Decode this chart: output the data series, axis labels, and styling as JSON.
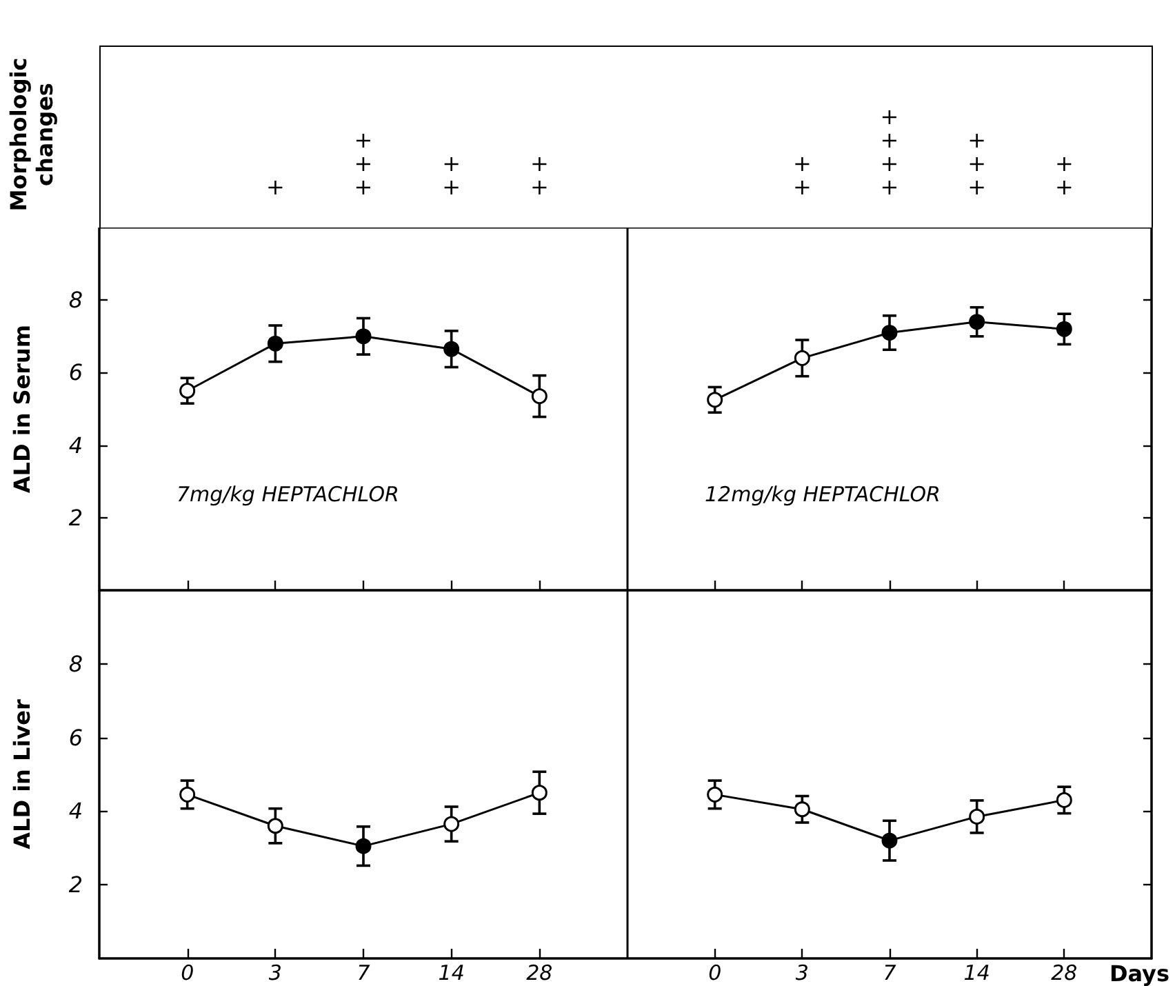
{
  "chart_data": [
    {
      "type": "other",
      "ylabel": "Morphologic changes",
      "categories": [
        "0",
        "3",
        "7",
        "14",
        "28"
      ],
      "value_labels": [
        null,
        "+",
        "+++",
        "++",
        "++"
      ]
    },
    {
      "type": "other",
      "categories": [
        "0",
        "3",
        "7",
        "14",
        "28"
      ],
      "value_labels": [
        null,
        "++",
        "++++",
        "+++",
        "++"
      ]
    },
    {
      "type": "line",
      "ylabel": "ALD in Serum",
      "categories": [
        "0",
        "3",
        "7",
        "14",
        "28"
      ],
      "ylim": [
        0,
        10
      ],
      "yticks": [
        2,
        4,
        6,
        8
      ],
      "tick_labels": "y",
      "marker": "circle",
      "annotations": [
        "7mg/kg HEPTACHLOR"
      ],
      "series": [
        {
          "color": "#000000",
          "colors": [
            "#ffffff",
            "#000000",
            "#000000",
            "#000000",
            "#ffffff"
          ],
          "values": [
            5.5,
            6.8,
            7.0,
            6.65,
            5.35
          ],
          "errors": [
            0.35,
            0.5,
            0.5,
            0.5,
            0.57
          ]
        }
      ]
    },
    {
      "type": "line",
      "categories": [
        "0",
        "3",
        "7",
        "14",
        "28"
      ],
      "ylim": [
        0,
        10
      ],
      "yticks": [
        2,
        4,
        6,
        8
      ],
      "tick_labels": false,
      "marker": "circle",
      "annotations": [
        "12mg/kg HEPTACHLOR"
      ],
      "series": [
        {
          "color": "#000000",
          "colors": [
            "#ffffff",
            "#ffffff",
            "#000000",
            "#000000",
            "#000000"
          ],
          "values": [
            5.25,
            6.4,
            7.1,
            7.4,
            7.2
          ],
          "errors": [
            0.35,
            0.5,
            0.47,
            0.4,
            0.42
          ]
        }
      ]
    },
    {
      "type": "line",
      "ylabel": "ALD in Liver",
      "categories": [
        "0",
        "3",
        "7",
        "14",
        "28"
      ],
      "ylim": [
        0,
        10
      ],
      "yticks": [
        2,
        4,
        6,
        8
      ],
      "marker": "circle",
      "series": [
        {
          "color": "#000000",
          "colors": [
            "#ffffff",
            "#ffffff",
            "#000000",
            "#ffffff",
            "#ffffff"
          ],
          "values": [
            4.45,
            3.6,
            3.05,
            3.65,
            4.5
          ],
          "errors": [
            0.38,
            0.47,
            0.53,
            0.47,
            0.57
          ]
        }
      ]
    },
    {
      "type": "line",
      "xlabel": "Days",
      "categories": [
        "0",
        "3",
        "7",
        "14",
        "28"
      ],
      "ylim": [
        0,
        10
      ],
      "yticks": [
        2,
        4,
        6,
        8
      ],
      "tick_labels": "x",
      "marker": "circle",
      "series": [
        {
          "color": "#000000",
          "colors": [
            "#ffffff",
            "#ffffff",
            "#000000",
            "#ffffff",
            "#ffffff"
          ],
          "values": [
            4.45,
            4.05,
            3.2,
            3.85,
            4.3
          ],
          "errors": [
            0.38,
            0.36,
            0.54,
            0.44,
            0.36
          ]
        }
      ]
    }
  ]
}
